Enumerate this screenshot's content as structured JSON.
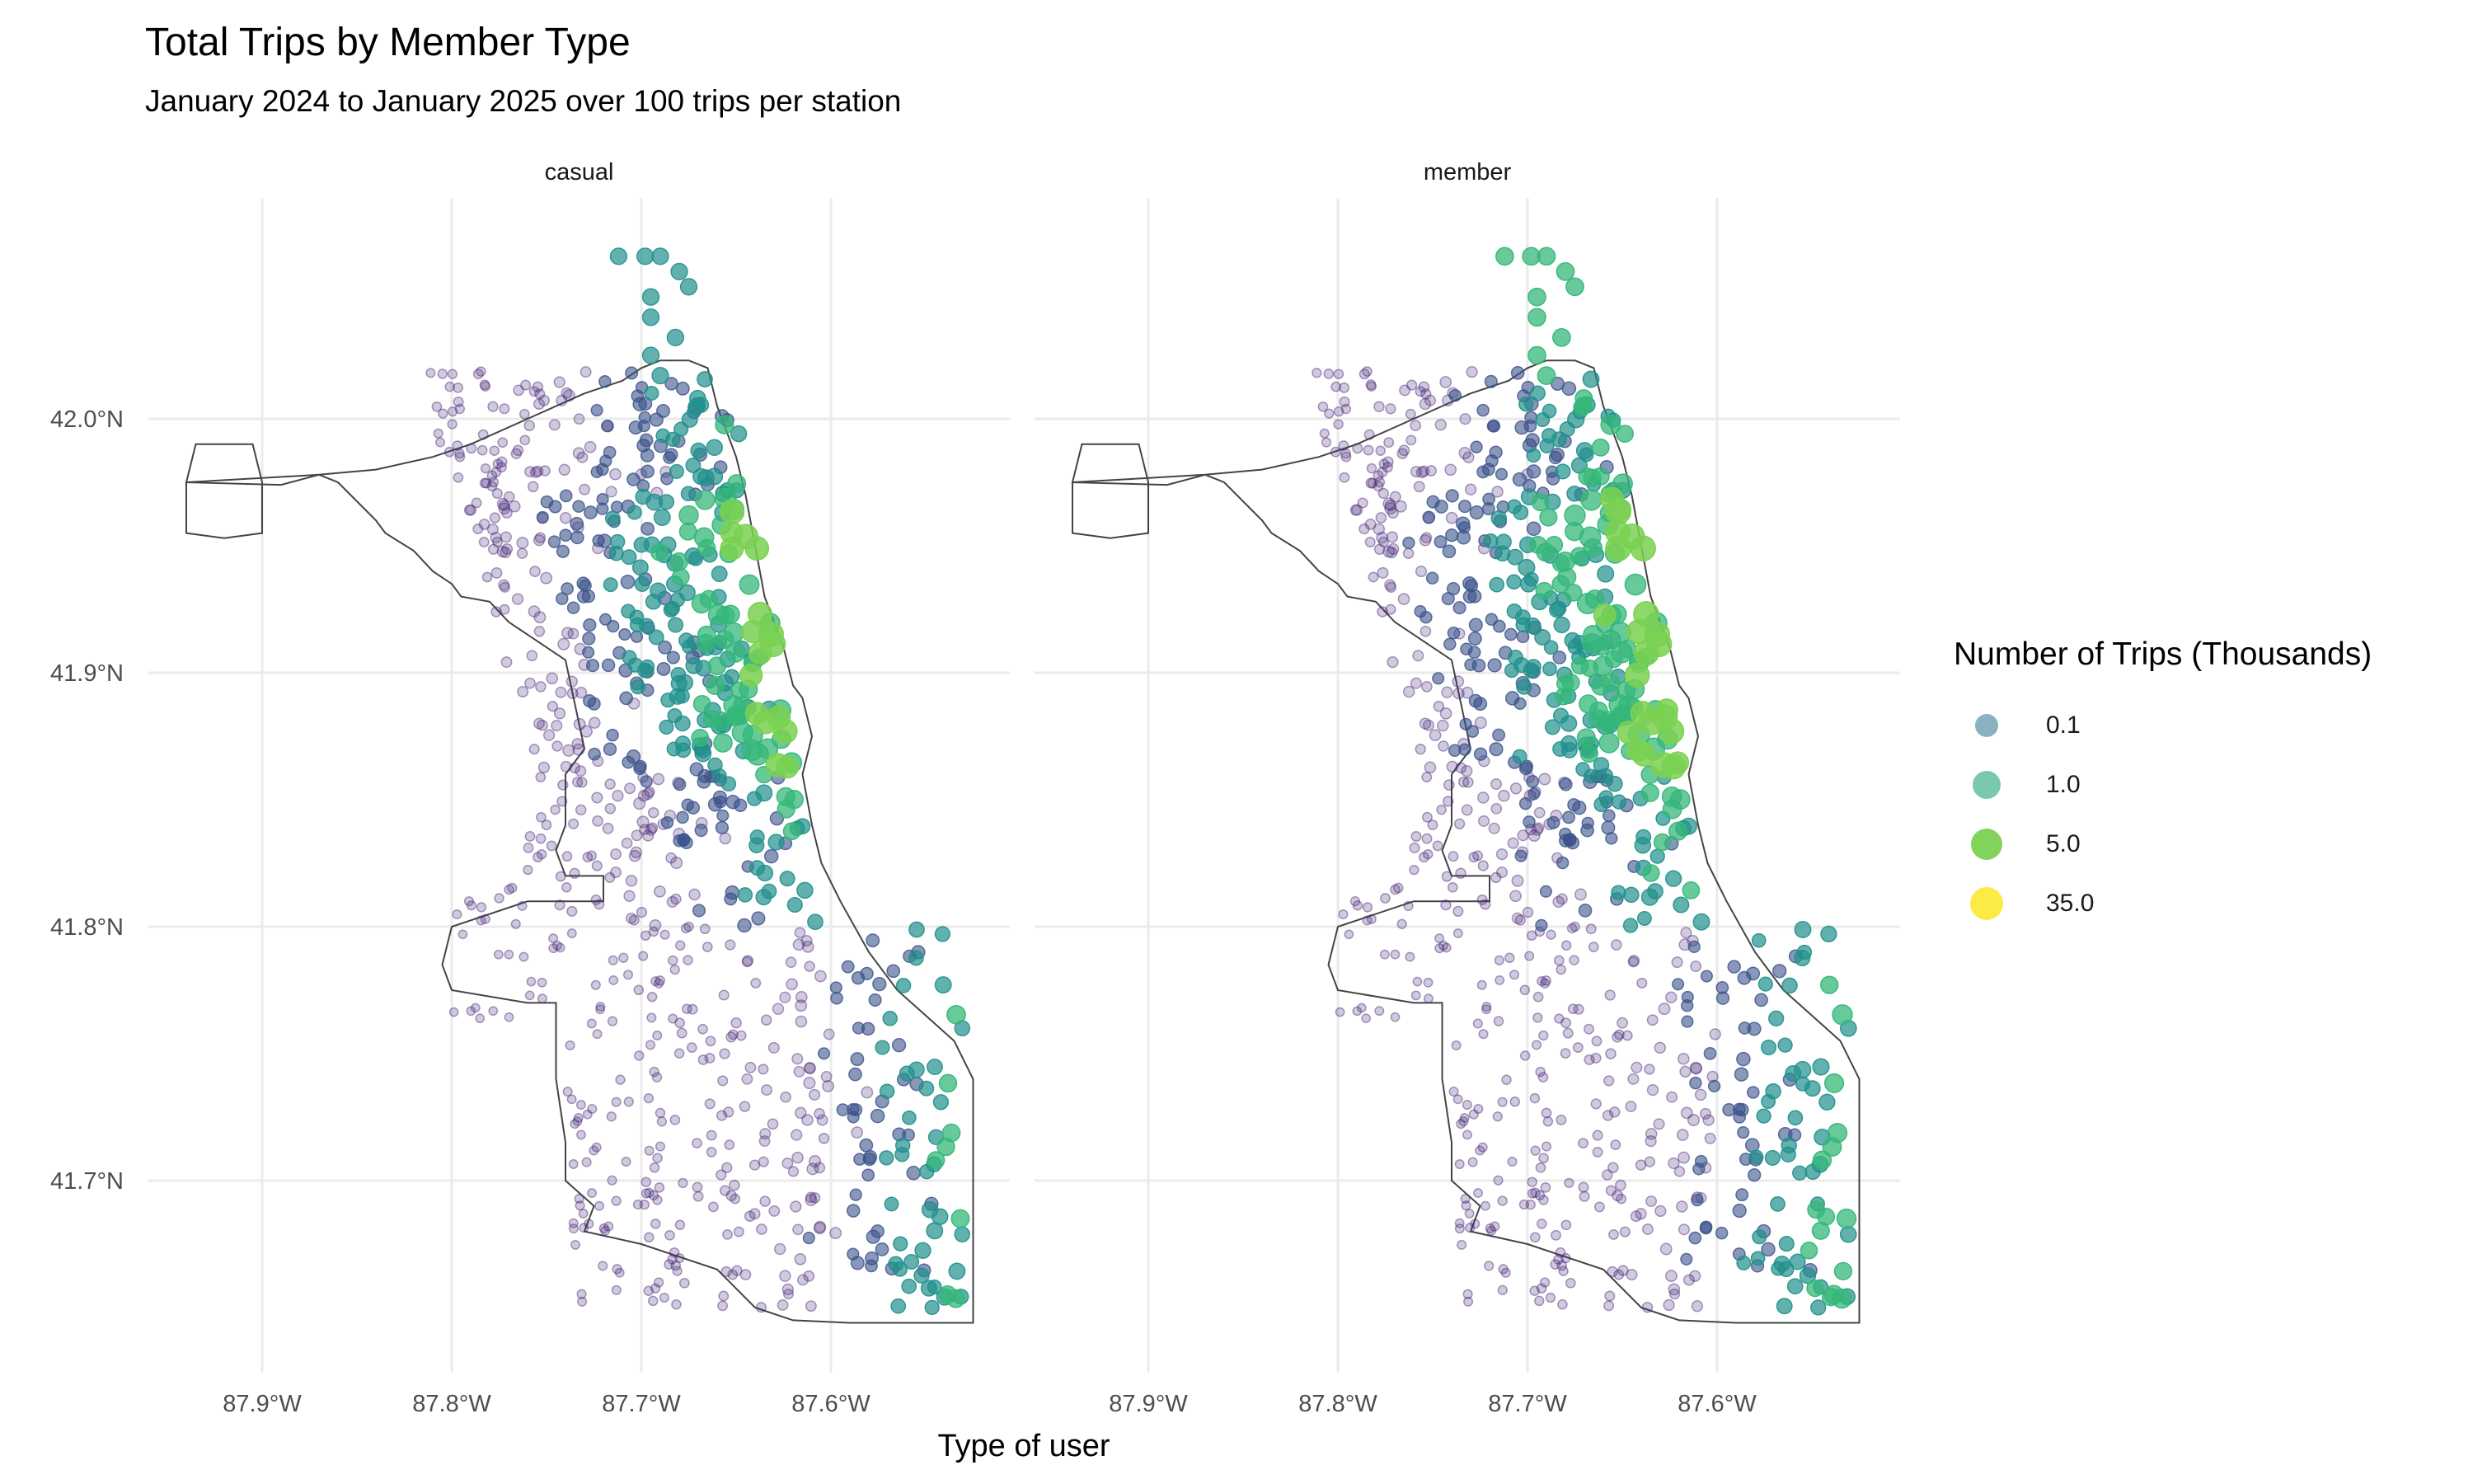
{
  "title": "Total Trips by Member Type",
  "subtitle": "January 2024 to January 2025 over 100 trips per station",
  "chart_data": {
    "type": "scatter",
    "facets": [
      "casual",
      "member"
    ],
    "xlabel": "Type of user",
    "ylabel": "",
    "x_ticks": [
      "87.9°W",
      "87.8°W",
      "87.7°W",
      "87.6°W"
    ],
    "x_tick_values": [
      -87.9,
      -87.8,
      -87.7,
      -87.6
    ],
    "y_ticks": [
      "41.7°N",
      "41.8°N",
      "41.9°N",
      "42.0°N"
    ],
    "y_tick_values": [
      41.7,
      41.8,
      41.9,
      42.0
    ],
    "xlim": [
      -87.94,
      -87.52
    ],
    "ylim": [
      41.64,
      42.07
    ],
    "grid": true,
    "legend": {
      "title": "Number of Trips (Thousands)",
      "placement": "right",
      "entries": [
        {
          "label": "0.1",
          "value": 0.1,
          "color": "#3B7E97"
        },
        {
          "label": "1.0",
          "value": 1.0,
          "color": "#22A47C"
        },
        {
          "label": "5.0",
          "value": 5.0,
          "color": "#6CCB3F"
        },
        {
          "label": "35.0",
          "value": 35.0,
          "color": "#FDE725"
        }
      ]
    },
    "colors": {
      "low": "#440154",
      "mid_low": "#3B528B",
      "mid": "#21908C",
      "mid_high": "#5DC863",
      "high": "#FDE725",
      "boundary": "#444444",
      "grid": "#EBEBEB"
    },
    "map_outline": [
      [
        -87.94,
        41.975
      ],
      [
        -87.935,
        41.99
      ],
      [
        -87.92,
        41.99
      ],
      [
        -87.905,
        41.99
      ],
      [
        -87.9,
        41.975
      ],
      [
        -87.9,
        41.955
      ],
      [
        -87.92,
        41.953
      ],
      [
        -87.94,
        41.955
      ],
      [
        -87.94,
        41.975
      ],
      [
        -87.89,
        41.974
      ],
      [
        -87.87,
        41.978
      ],
      [
        -87.86,
        41.975
      ],
      [
        -87.84,
        41.96
      ],
      [
        -87.835,
        41.955
      ],
      [
        -87.82,
        41.948
      ],
      [
        -87.81,
        41.94
      ],
      [
        -87.8,
        41.935
      ],
      [
        -87.795,
        41.93
      ],
      [
        -87.78,
        41.928
      ],
      [
        -87.77,
        41.92
      ],
      [
        -87.75,
        41.91
      ],
      [
        -87.74,
        41.905
      ],
      [
        -87.73,
        41.87
      ],
      [
        -87.74,
        41.86
      ],
      [
        -87.74,
        41.84
      ],
      [
        -87.745,
        41.83
      ],
      [
        -87.74,
        41.82
      ],
      [
        -87.72,
        41.82
      ],
      [
        -87.72,
        41.81
      ],
      [
        -87.76,
        41.81
      ],
      [
        -87.8,
        41.8
      ],
      [
        -87.805,
        41.785
      ],
      [
        -87.8,
        41.775
      ],
      [
        -87.76,
        41.77
      ],
      [
        -87.745,
        41.77
      ],
      [
        -87.745,
        41.74
      ],
      [
        -87.74,
        41.715
      ],
      [
        -87.74,
        41.7
      ],
      [
        -87.725,
        41.69
      ],
      [
        -87.73,
        41.68
      ],
      [
        -87.7,
        41.675
      ],
      [
        -87.68,
        41.67
      ],
      [
        -87.66,
        41.665
      ],
      [
        -87.64,
        41.65
      ],
      [
        -87.62,
        41.645
      ],
      [
        -87.59,
        41.644
      ],
      [
        -87.525,
        41.644
      ],
      [
        -87.525,
        41.66
      ],
      [
        -87.525,
        41.7
      ],
      [
        -87.525,
        41.74
      ],
      [
        -87.535,
        41.755
      ],
      [
        -87.55,
        41.765
      ],
      [
        -87.565,
        41.775
      ],
      [
        -87.58,
        41.79
      ],
      [
        -87.595,
        41.81
      ],
      [
        -87.605,
        41.825
      ],
      [
        -87.61,
        41.84
      ],
      [
        -87.615,
        41.86
      ],
      [
        -87.61,
        41.875
      ],
      [
        -87.615,
        41.89
      ],
      [
        -87.62,
        41.895
      ],
      [
        -87.625,
        41.91
      ],
      [
        -87.635,
        41.93
      ],
      [
        -87.64,
        41.95
      ],
      [
        -87.645,
        41.97
      ],
      [
        -87.65,
        41.985
      ],
      [
        -87.655,
        41.995
      ],
      [
        -87.66,
        42.005
      ],
      [
        -87.665,
        42.02
      ],
      [
        -87.675,
        42.023
      ],
      [
        -87.69,
        42.023
      ],
      [
        -87.7,
        42.02
      ],
      [
        -87.71,
        42.015
      ],
      [
        -87.73,
        42.01
      ],
      [
        -87.76,
        42.0
      ],
      [
        -87.79,
        41.99
      ],
      [
        -87.81,
        41.985
      ],
      [
        -87.84,
        41.98
      ],
      [
        -87.87,
        41.978
      ]
    ],
    "stations_summary": "Stations concentrated along the lakefront (approx. 87.6°W–87.65°W) with highest trip counts near 41.88°N–41.95°N; sparser, low-count stations to the south and west."
  }
}
